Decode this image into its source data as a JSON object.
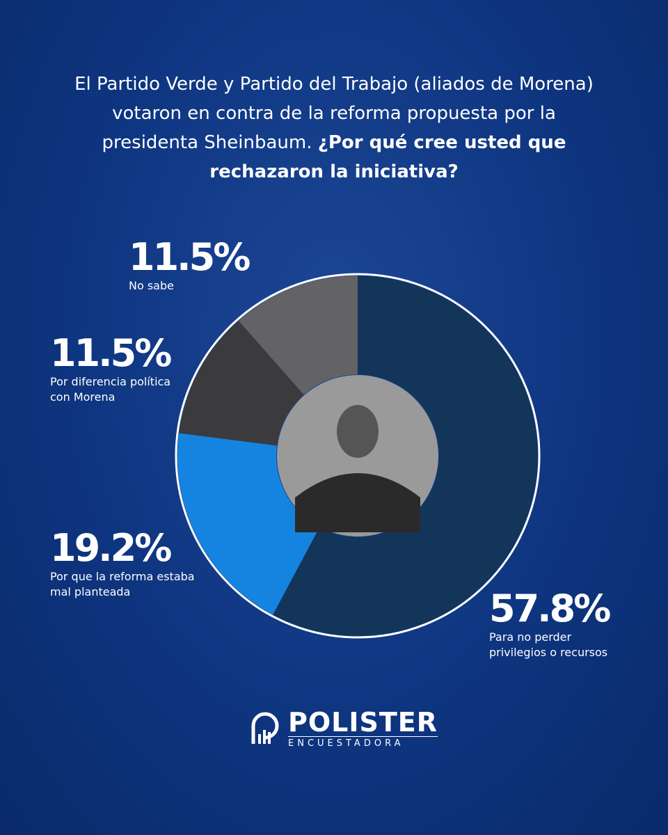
{
  "chart_data": {
    "type": "donut",
    "title": "El Partido Verde y Partido del Trabajo (aliados de Morena) votaron en contra de la reforma propuesta por la presidenta Sheinbaum.",
    "subtitle": "¿Por qué cree usted que rechazaron la iniciativa?",
    "categories": [
      "Para no perder privilegios o recursos",
      "Por que la reforma estaba mal planteada",
      "Por diferencia política con Morena",
      "No sabe"
    ],
    "values": [
      57.8,
      19.2,
      11.5,
      11.5
    ],
    "value_labels": [
      "57.8%",
      "19.2%",
      "11.5%",
      "11.5%"
    ],
    "colors": [
      "#13355a",
      "#1584e0",
      "#3b3b3d",
      "#636366"
    ]
  },
  "brand": {
    "name": "POLISTER",
    "tagline": "ENCUESTADORA"
  }
}
